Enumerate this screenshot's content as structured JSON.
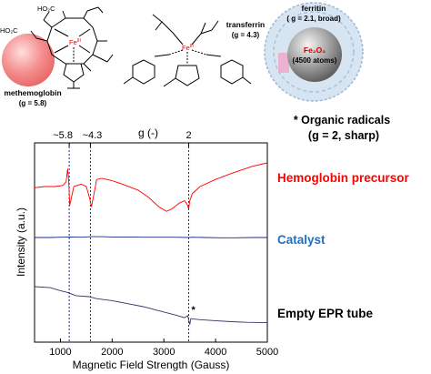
{
  "structures": {
    "methemoglobin": {
      "name": "methemoglobin",
      "g": "(g = 5.8)",
      "acid_1": "HO₂C",
      "acid_2": "HO₂C",
      "metal": "Fe",
      "oxidation": "III"
    },
    "transferrin": {
      "name": "transferrin",
      "g": "(g = 4.3)",
      "metal": "Fe",
      "oxidation": "III"
    },
    "ferritin": {
      "name": "ferritin",
      "g": "( g = 2.1, broad)",
      "core": "Fe₂O₃",
      "atoms": "(4500 atoms)"
    }
  },
  "radicals_note": {
    "line1": "* Organic radicals",
    "line2": "(g = 2, sharp)"
  },
  "chart_data": {
    "type": "line",
    "xlabel": "Magnetic Field Strength (Gauss)",
    "ylabel": "Intensity (a.u.)",
    "top_axis_label": "g (-)",
    "xlim": [
      500,
      5000
    ],
    "x_ticks": [
      1000,
      2000,
      3000,
      4000,
      5000
    ],
    "g_markers": [
      {
        "label": "~5.8",
        "field": 1170
      },
      {
        "label": "~4.3",
        "field": 1580
      },
      {
        "label": "2",
        "field": 3480
      }
    ],
    "series": [
      {
        "name": "Hemoglobin precursor",
        "color": "#ff0000",
        "x": [
          500,
          700,
          900,
          1050,
          1110,
          1140,
          1160,
          1180,
          1200,
          1260,
          1400,
          1500,
          1560,
          1600,
          1640,
          1700,
          1800,
          2000,
          2200,
          2500,
          2700,
          2900,
          3050,
          3150,
          3300,
          3400,
          3450,
          3480,
          3500,
          3550,
          3700,
          4000,
          4300,
          4700,
          5000
        ],
        "y": [
          -0.05,
          0.0,
          0.0,
          0.05,
          0.2,
          0.75,
          0.25,
          -0.8,
          -0.6,
          0.0,
          0.1,
          0.0,
          -0.45,
          -0.85,
          -0.4,
          0.3,
          0.35,
          0.25,
          0.1,
          -0.15,
          -0.45,
          -0.85,
          -1.05,
          -0.95,
          -0.7,
          -0.6,
          -0.75,
          -0.95,
          -0.6,
          -0.3,
          0.0,
          0.3,
          0.55,
          0.85,
          1.0
        ]
      },
      {
        "name": "Catalyst",
        "color": "#1a2b8c",
        "x": [
          500,
          800,
          1000,
          1200,
          1400,
          1600,
          1800,
          2000,
          2300,
          2600,
          2900,
          3200,
          3480,
          3550,
          3800,
          4100,
          4400,
          4700,
          5000
        ],
        "y": [
          0.0,
          0.0,
          0.05,
          0.1,
          0.05,
          0.15,
          0.15,
          0.1,
          0.1,
          0.05,
          0.05,
          0.05,
          0.0,
          0.05,
          0.0,
          -0.05,
          -0.05,
          0.0,
          0.0
        ]
      },
      {
        "name": "Empty EPR tube",
        "color": "#333366",
        "x": [
          500,
          800,
          1000,
          1150,
          1300,
          1550,
          1700,
          2000,
          2300,
          2600,
          2900,
          3200,
          3400,
          3460,
          3480,
          3500,
          3520,
          3700,
          4000,
          4300,
          4600,
          5000
        ],
        "y": [
          1.0,
          0.95,
          0.8,
          0.7,
          0.55,
          0.5,
          0.4,
          0.3,
          0.15,
          0.0,
          -0.2,
          -0.4,
          -0.55,
          -0.45,
          -0.65,
          -0.9,
          -0.6,
          -0.65,
          -0.7,
          -0.75,
          -0.78,
          -0.8
        ]
      }
    ],
    "annotations": [
      {
        "text": "*",
        "field": 3570
      }
    ]
  }
}
